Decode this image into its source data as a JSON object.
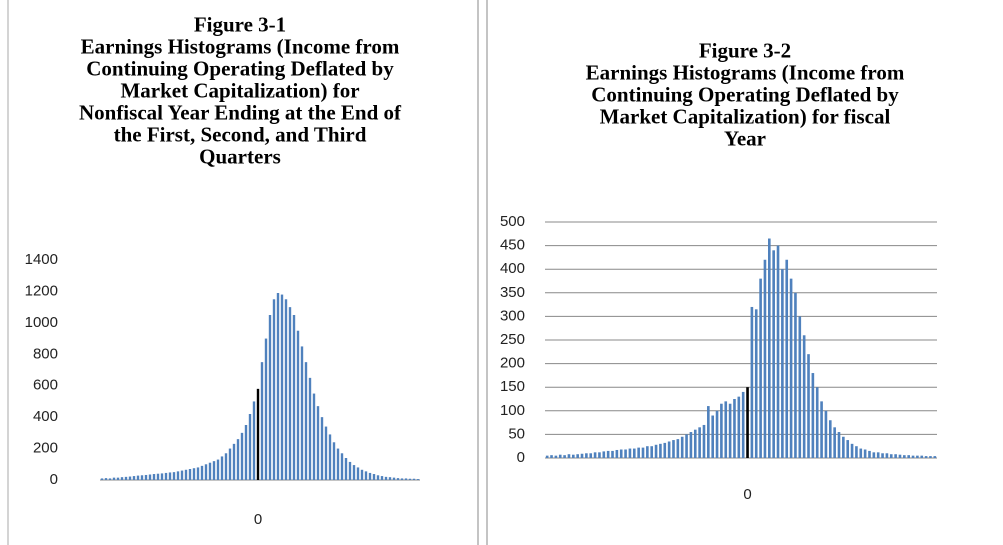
{
  "chart_data": [
    {
      "type": "bar",
      "title": [
        "Figure 3-1",
        "Earnings Histograms (Income from",
        "Continuing Operating Deflated by",
        "Market Capitalization) for",
        "Nonfiscal Year Ending at the End of",
        "the First, Second, and Third",
        "Quarters"
      ],
      "categories": [
        null,
        null,
        null,
        null,
        null,
        null,
        null,
        null,
        null,
        null,
        null,
        null,
        null,
        null,
        null,
        null,
        null,
        null,
        null,
        null,
        null,
        null,
        null,
        null,
        null,
        null,
        null,
        null,
        null,
        null,
        null,
        null,
        null,
        null,
        null,
        null,
        null,
        null,
        null,
        "0",
        null,
        null,
        null,
        null,
        null,
        null,
        null,
        null,
        null,
        null,
        null,
        null,
        null,
        null,
        null,
        null,
        null,
        null,
        null,
        null,
        null,
        null,
        null,
        null,
        null,
        null,
        null,
        null,
        null,
        null,
        null,
        null,
        null,
        null,
        null,
        null,
        null,
        null,
        null,
        null
      ],
      "values": [
        10,
        12,
        10,
        15,
        15,
        18,
        20,
        22,
        25,
        28,
        30,
        32,
        35,
        38,
        40,
        42,
        45,
        48,
        50,
        55,
        60,
        65,
        70,
        75,
        80,
        90,
        100,
        110,
        120,
        130,
        150,
        170,
        200,
        230,
        260,
        300,
        350,
        420,
        500,
        580,
        750,
        900,
        1050,
        1150,
        1190,
        1180,
        1150,
        1100,
        1050,
        950,
        850,
        750,
        650,
        550,
        470,
        400,
        340,
        290,
        240,
        200,
        170,
        140,
        115,
        95,
        80,
        65,
        55,
        45,
        38,
        30,
        25,
        20,
        18,
        15,
        12,
        10,
        10,
        8,
        8,
        6
      ],
      "color": "#4f81bd",
      "highlight_color": "#000000",
      "ylim": [
        0,
        1400
      ],
      "yticks": [
        0,
        200,
        400,
        600,
        800,
        1000,
        1200,
        1400
      ],
      "grid": false
    },
    {
      "type": "bar",
      "title": [
        "Figure 3-2",
        "Earnings Histograms (Income from",
        "Continuing Operating Deflated by",
        "Market Capitalization) for fiscal",
        "Year"
      ],
      "categories": [
        null,
        null,
        null,
        null,
        null,
        null,
        null,
        null,
        null,
        null,
        null,
        null,
        null,
        null,
        null,
        null,
        null,
        null,
        null,
        null,
        null,
        null,
        null,
        null,
        null,
        null,
        null,
        null,
        null,
        null,
        null,
        null,
        null,
        null,
        null,
        null,
        null,
        null,
        null,
        null,
        null,
        null,
        null,
        null,
        null,
        null,
        "0",
        null,
        null,
        null,
        null,
        null,
        null,
        null,
        null,
        null,
        null,
        null,
        null,
        null,
        null,
        null,
        null,
        null,
        null,
        null,
        null,
        null,
        null,
        null,
        null,
        null,
        null,
        null,
        null,
        null,
        null,
        null,
        null,
        null,
        null,
        null,
        null,
        null,
        null,
        null,
        null,
        null,
        null,
        null
      ],
      "values": [
        5,
        6,
        5,
        7,
        6,
        8,
        7,
        8,
        9,
        10,
        10,
        12,
        12,
        14,
        15,
        15,
        17,
        18,
        18,
        20,
        20,
        22,
        22,
        25,
        25,
        28,
        30,
        32,
        35,
        38,
        40,
        45,
        50,
        55,
        60,
        65,
        70,
        110,
        90,
        100,
        115,
        120,
        115,
        125,
        130,
        140,
        150,
        320,
        315,
        380,
        420,
        465,
        440,
        450,
        400,
        420,
        380,
        350,
        300,
        260,
        220,
        180,
        150,
        120,
        100,
        80,
        65,
        55,
        45,
        38,
        30,
        25,
        20,
        18,
        15,
        12,
        12,
        10,
        10,
        8,
        8,
        7,
        6,
        6,
        5,
        5,
        5,
        4,
        4,
        4
      ],
      "color": "#4f81bd",
      "highlight_color": "#000000",
      "ylim": [
        0,
        500
      ],
      "yticks": [
        0,
        50,
        100,
        150,
        200,
        250,
        300,
        350,
        400,
        450,
        500
      ],
      "grid": true
    }
  ]
}
